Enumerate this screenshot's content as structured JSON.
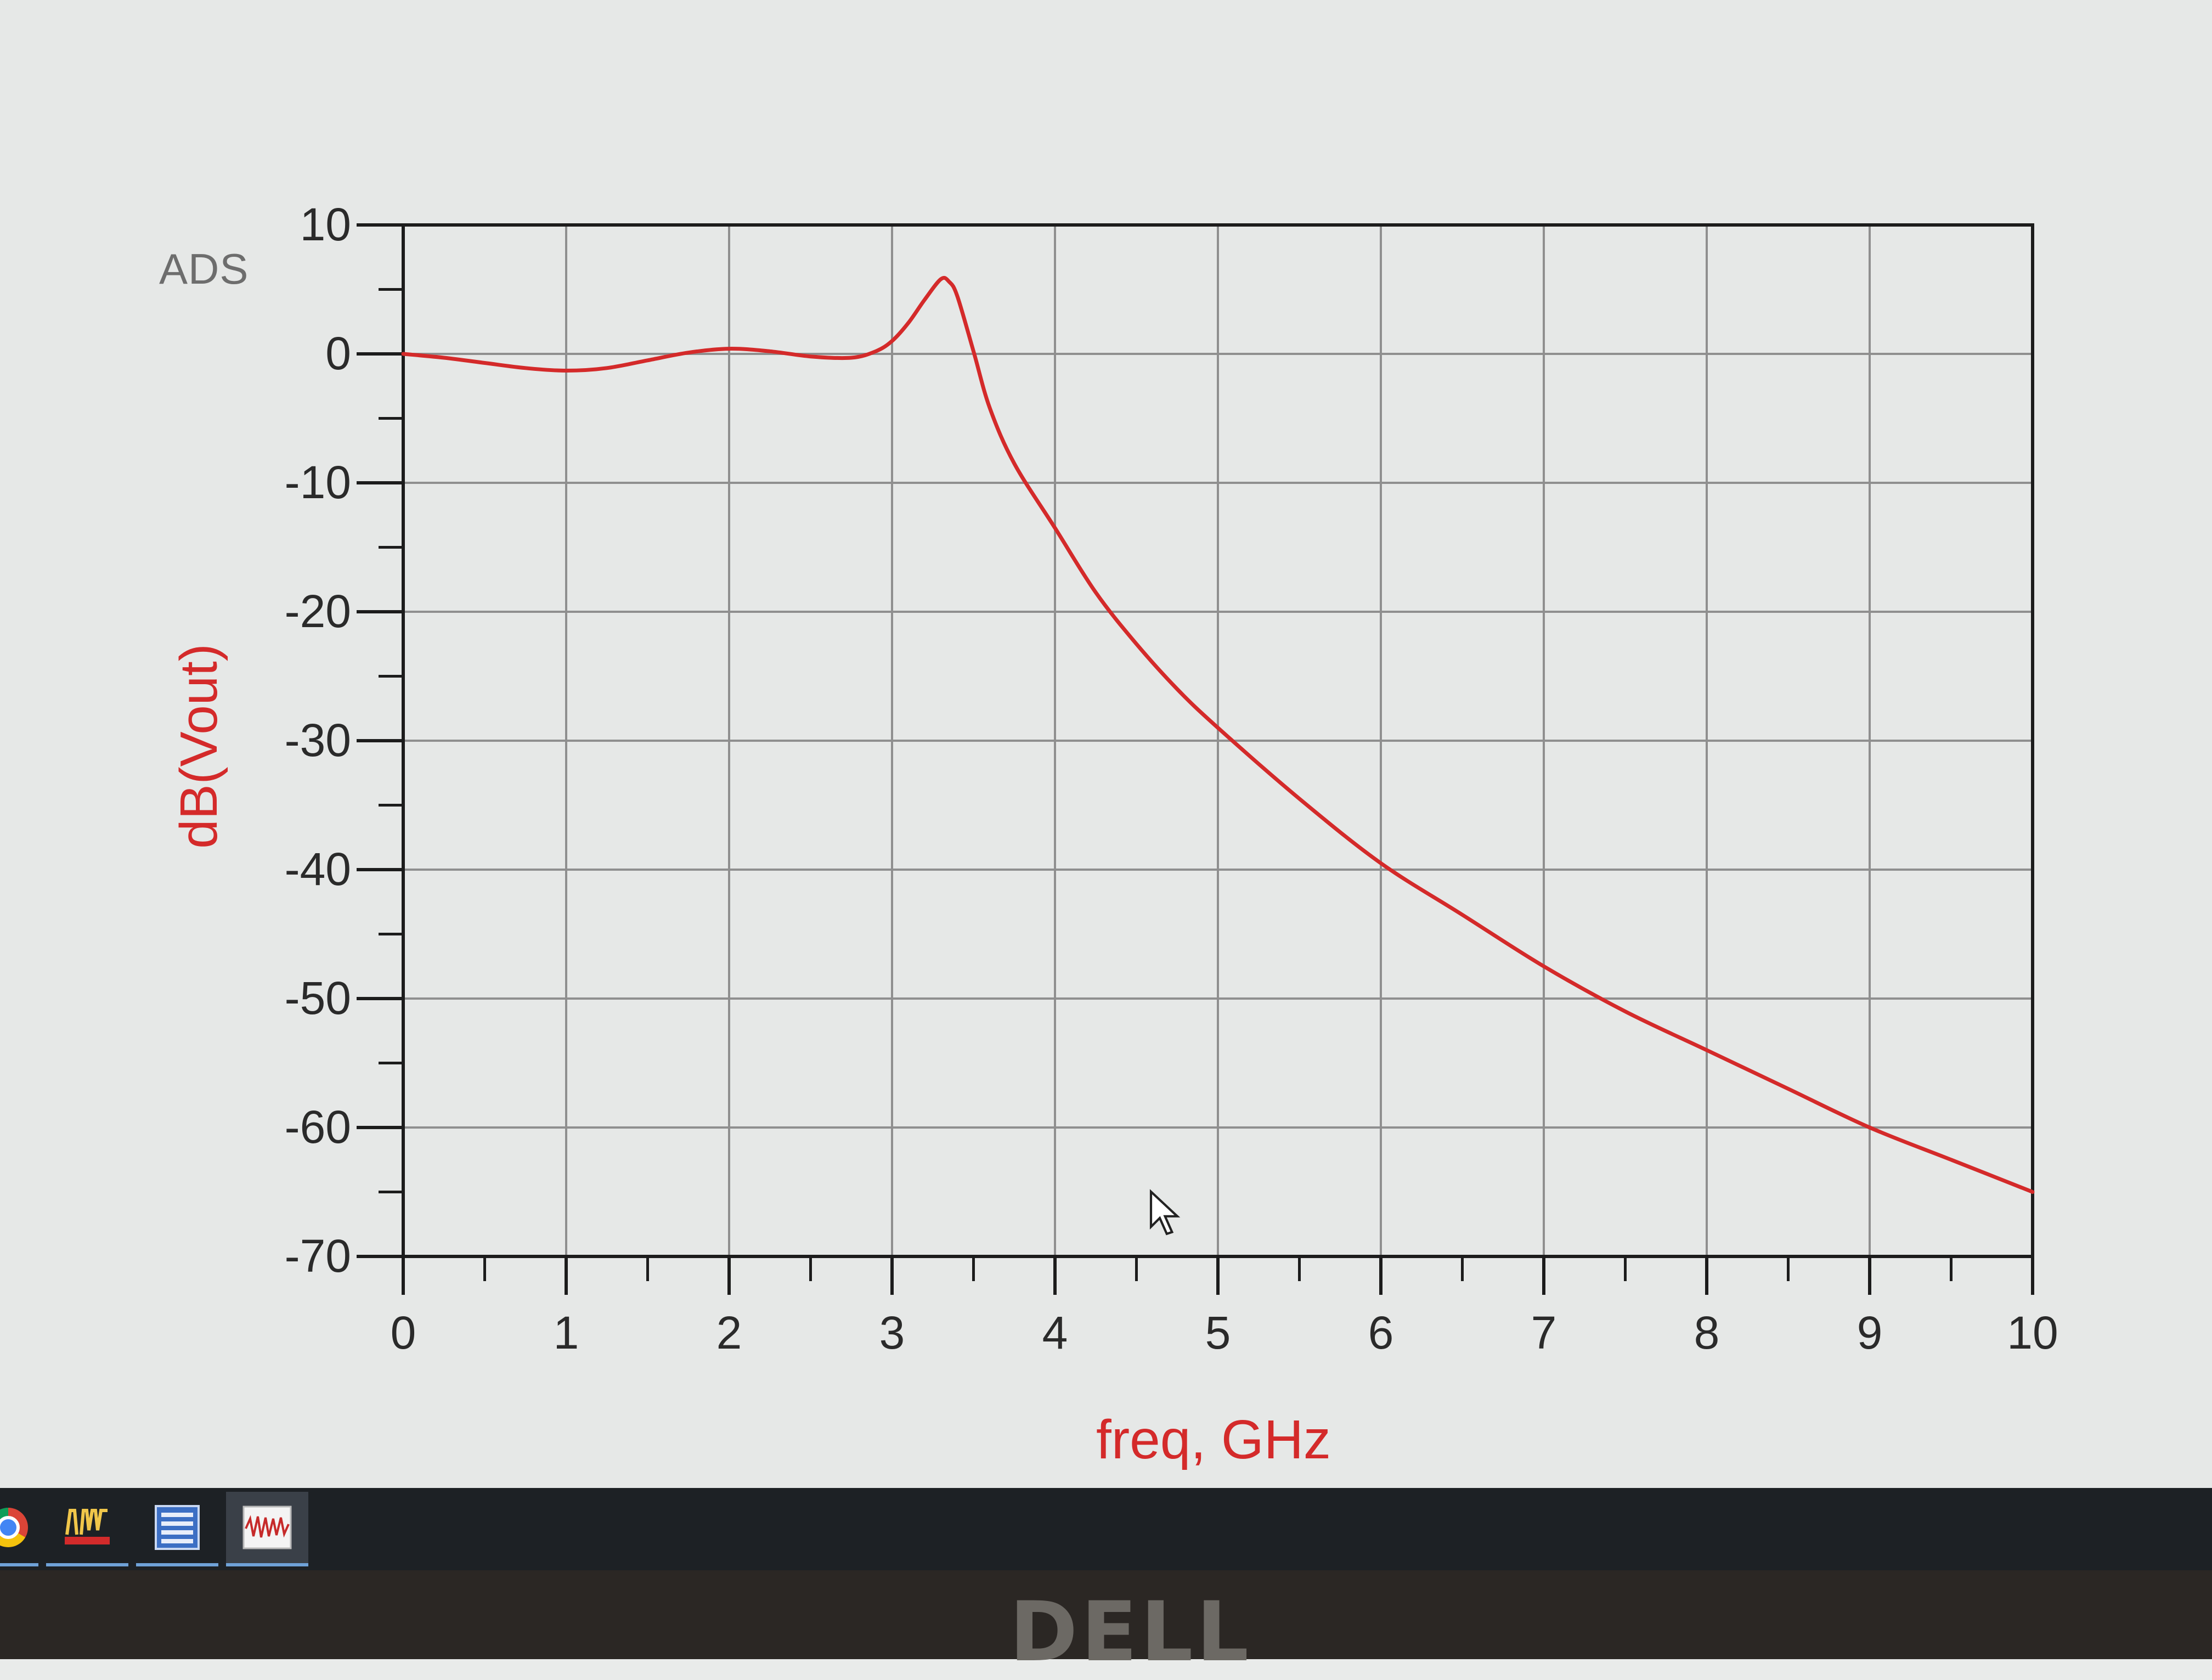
{
  "app_label": "ADS",
  "chart_data": {
    "type": "line",
    "xlabel": "freq, GHz",
    "ylabel": "dB(Vout)",
    "xlim": [
      0,
      10
    ],
    "ylim": [
      -70,
      10
    ],
    "x_ticks": [
      "0",
      "1",
      "2",
      "3",
      "4",
      "5",
      "6",
      "7",
      "8",
      "9",
      "10"
    ],
    "y_ticks": [
      "10",
      "0",
      "-10",
      "-20",
      "-30",
      "-40",
      "-50",
      "-60",
      "-70"
    ],
    "grid": true,
    "series_color": "#d42a2a",
    "series": [
      {
        "x": [
          0,
          0.25,
          0.5,
          0.75,
          1.0,
          1.25,
          1.5,
          1.75,
          2.0,
          2.25,
          2.5,
          2.75,
          2.9,
          3.0,
          3.1,
          3.2,
          3.3,
          3.35,
          3.4,
          3.5,
          3.6,
          3.75,
          4.0,
          4.25,
          4.5,
          4.75,
          5.0,
          5.5,
          6.0,
          6.5,
          7.0,
          7.5,
          8.0,
          8.5,
          9.0,
          9.5,
          10.0
        ],
        "y": [
          0,
          -0.3,
          -0.7,
          -1.1,
          -1.3,
          -1.1,
          -0.5,
          0.1,
          0.4,
          0.2,
          -0.2,
          -0.3,
          0.2,
          1.0,
          2.4,
          4.2,
          5.8,
          5.6,
          4.5,
          0.2,
          -4.2,
          -8.5,
          -13.5,
          -18.5,
          -22.5,
          -26.0,
          -29.0,
          -34.5,
          -39.5,
          -43.5,
          -47.5,
          -51.0,
          -54.0,
          -57.0,
          -60.0,
          -62.5,
          -65.0
        ]
      }
    ]
  },
  "taskbar": {
    "items": [
      {
        "icon": "chrome-icon"
      },
      {
        "icon": "ads-icon"
      },
      {
        "icon": "schematic-icon"
      },
      {
        "icon": "waveform-icon"
      }
    ]
  },
  "bezel": {
    "brand": "DELL"
  }
}
